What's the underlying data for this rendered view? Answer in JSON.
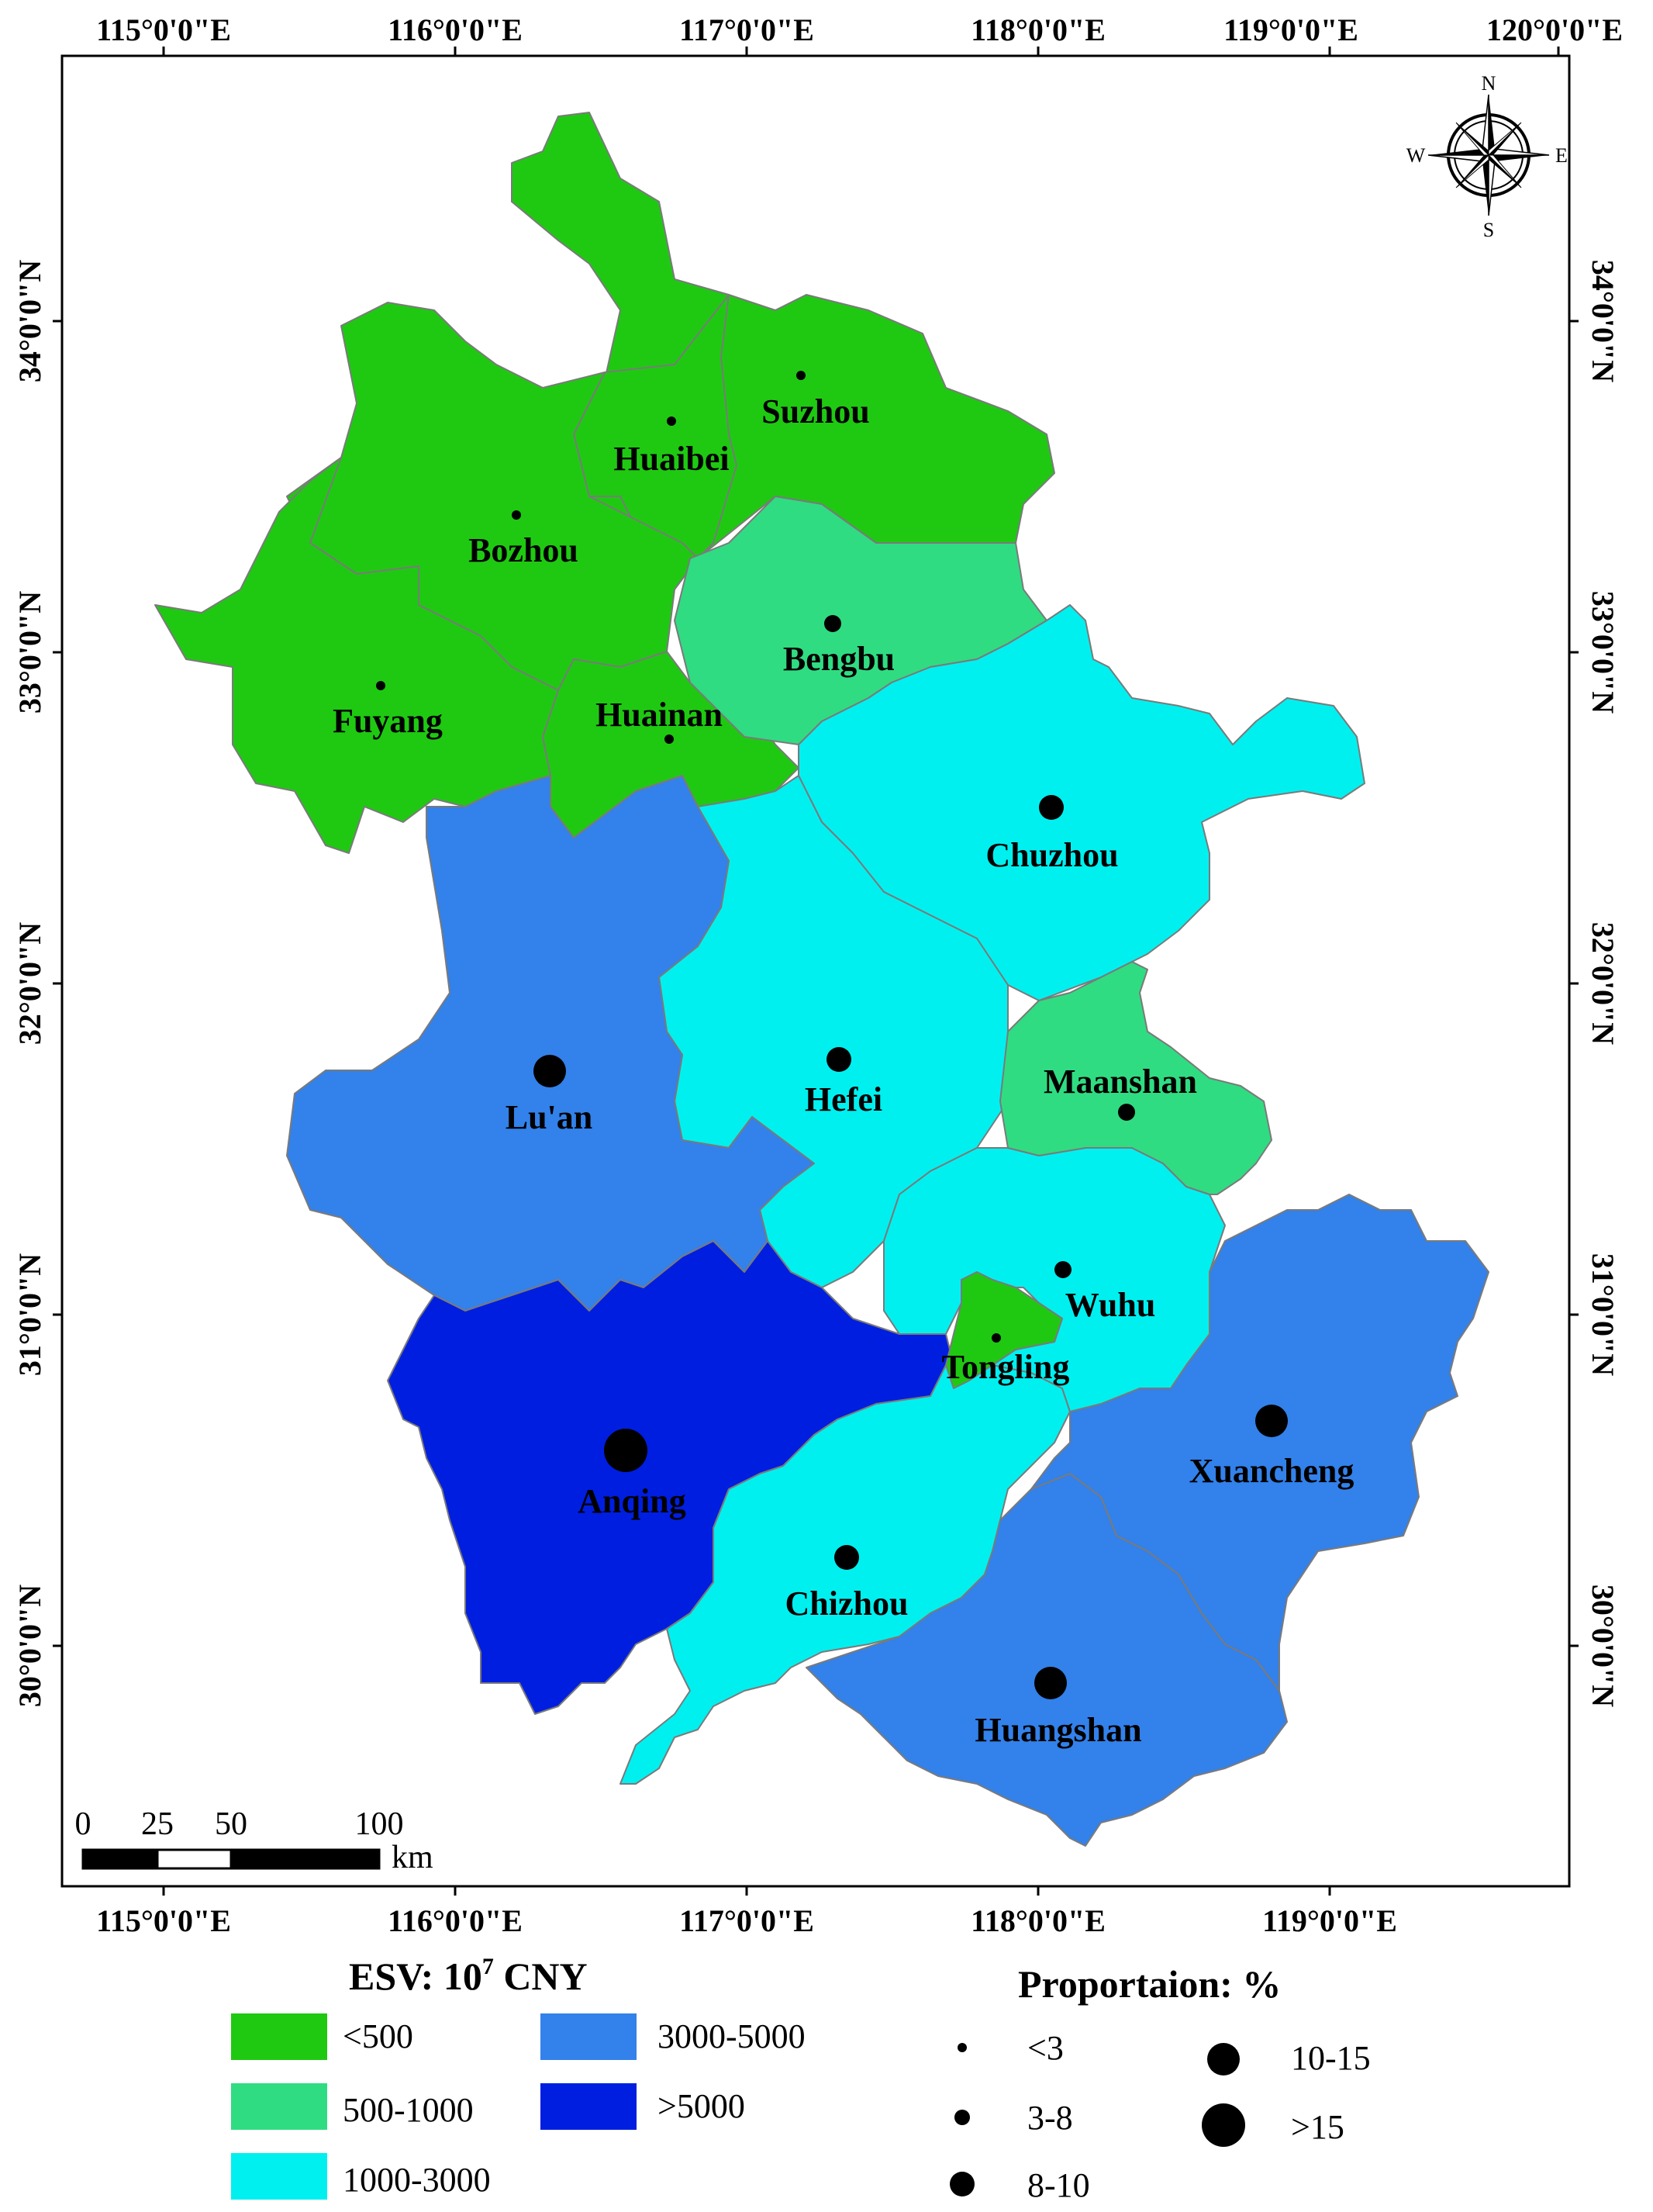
{
  "graticule": {
    "top_labels": [
      "115°0'0\"E",
      "116°0'0\"E",
      "117°0'0\"E",
      "118°0'0\"E",
      "119°0'0\"E",
      "120°0'0\"E"
    ],
    "bottom_labels": [
      "115°0'0\"E",
      "116°0'0\"E",
      "117°0'0\"E",
      "118°0'0\"E",
      "119°0'0\"E"
    ],
    "left_labels": [
      "34°0'0\"N",
      "33°0'0\"N",
      "32°0'0\"N",
      "31°0'0\"N",
      "30°0'0\"N"
    ],
    "right_labels": [
      "34°0'0\"N",
      "33°0'0\"N",
      "32°0'0\"N",
      "31°0'0\"N",
      "30°0'0\"N"
    ]
  },
  "compass": {
    "n": "N",
    "s": "S",
    "e": "E",
    "w": "W"
  },
  "scale_bar": {
    "ticks": [
      "0",
      "25",
      "50",
      "100"
    ],
    "unit": "km"
  },
  "colors": {
    "lt500": "#1fc912",
    "c500_1000": "#30dc82",
    "c1000_3000": "#00f0f0",
    "c3000_5000": "#3381ea",
    "gt5000": "#001ee0"
  },
  "cities": [
    {
      "name": "Suzhou",
      "esv_class": "<500",
      "proportion_class": "<3"
    },
    {
      "name": "Huaibei",
      "esv_class": "<500",
      "proportion_class": "<3"
    },
    {
      "name": "Bozhou",
      "esv_class": "<500",
      "proportion_class": "<3"
    },
    {
      "name": "Fuyang",
      "esv_class": "<500",
      "proportion_class": "<3"
    },
    {
      "name": "Huainan",
      "esv_class": "<500",
      "proportion_class": "<3"
    },
    {
      "name": "Bengbu",
      "esv_class": "500-1000",
      "proportion_class": "3-8"
    },
    {
      "name": "Chuzhou",
      "esv_class": "1000-3000",
      "proportion_class": "8-10"
    },
    {
      "name": "Lu'an",
      "esv_class": "3000-5000",
      "proportion_class": "10-15"
    },
    {
      "name": "Hefei",
      "esv_class": "1000-3000",
      "proportion_class": "8-10"
    },
    {
      "name": "Maanshan",
      "esv_class": "500-1000",
      "proportion_class": "3-8"
    },
    {
      "name": "Wuhu",
      "esv_class": "1000-3000",
      "proportion_class": "3-8"
    },
    {
      "name": "Tongling",
      "esv_class": "<500",
      "proportion_class": "<3"
    },
    {
      "name": "Xuancheng",
      "esv_class": "3000-5000",
      "proportion_class": "10-15"
    },
    {
      "name": "Anqing",
      "esv_class": ">5000",
      "proportion_class": ">15"
    },
    {
      "name": "Chizhou",
      "esv_class": "1000-3000",
      "proportion_class": "8-10"
    },
    {
      "name": "Huangshan",
      "esv_class": "3000-5000",
      "proportion_class": "10-15"
    }
  ],
  "legend_esv": {
    "title_main": "ESV: 10",
    "title_sup": "7",
    "title_unit": " CNY",
    "items": [
      "<500",
      "500-1000",
      "1000-3000",
      "3000-5000",
      ">5000"
    ]
  },
  "legend_prop": {
    "title": "Proportaion:  %",
    "items": [
      "<3",
      "3-8",
      "8-10",
      "10-15",
      ">15"
    ]
  }
}
